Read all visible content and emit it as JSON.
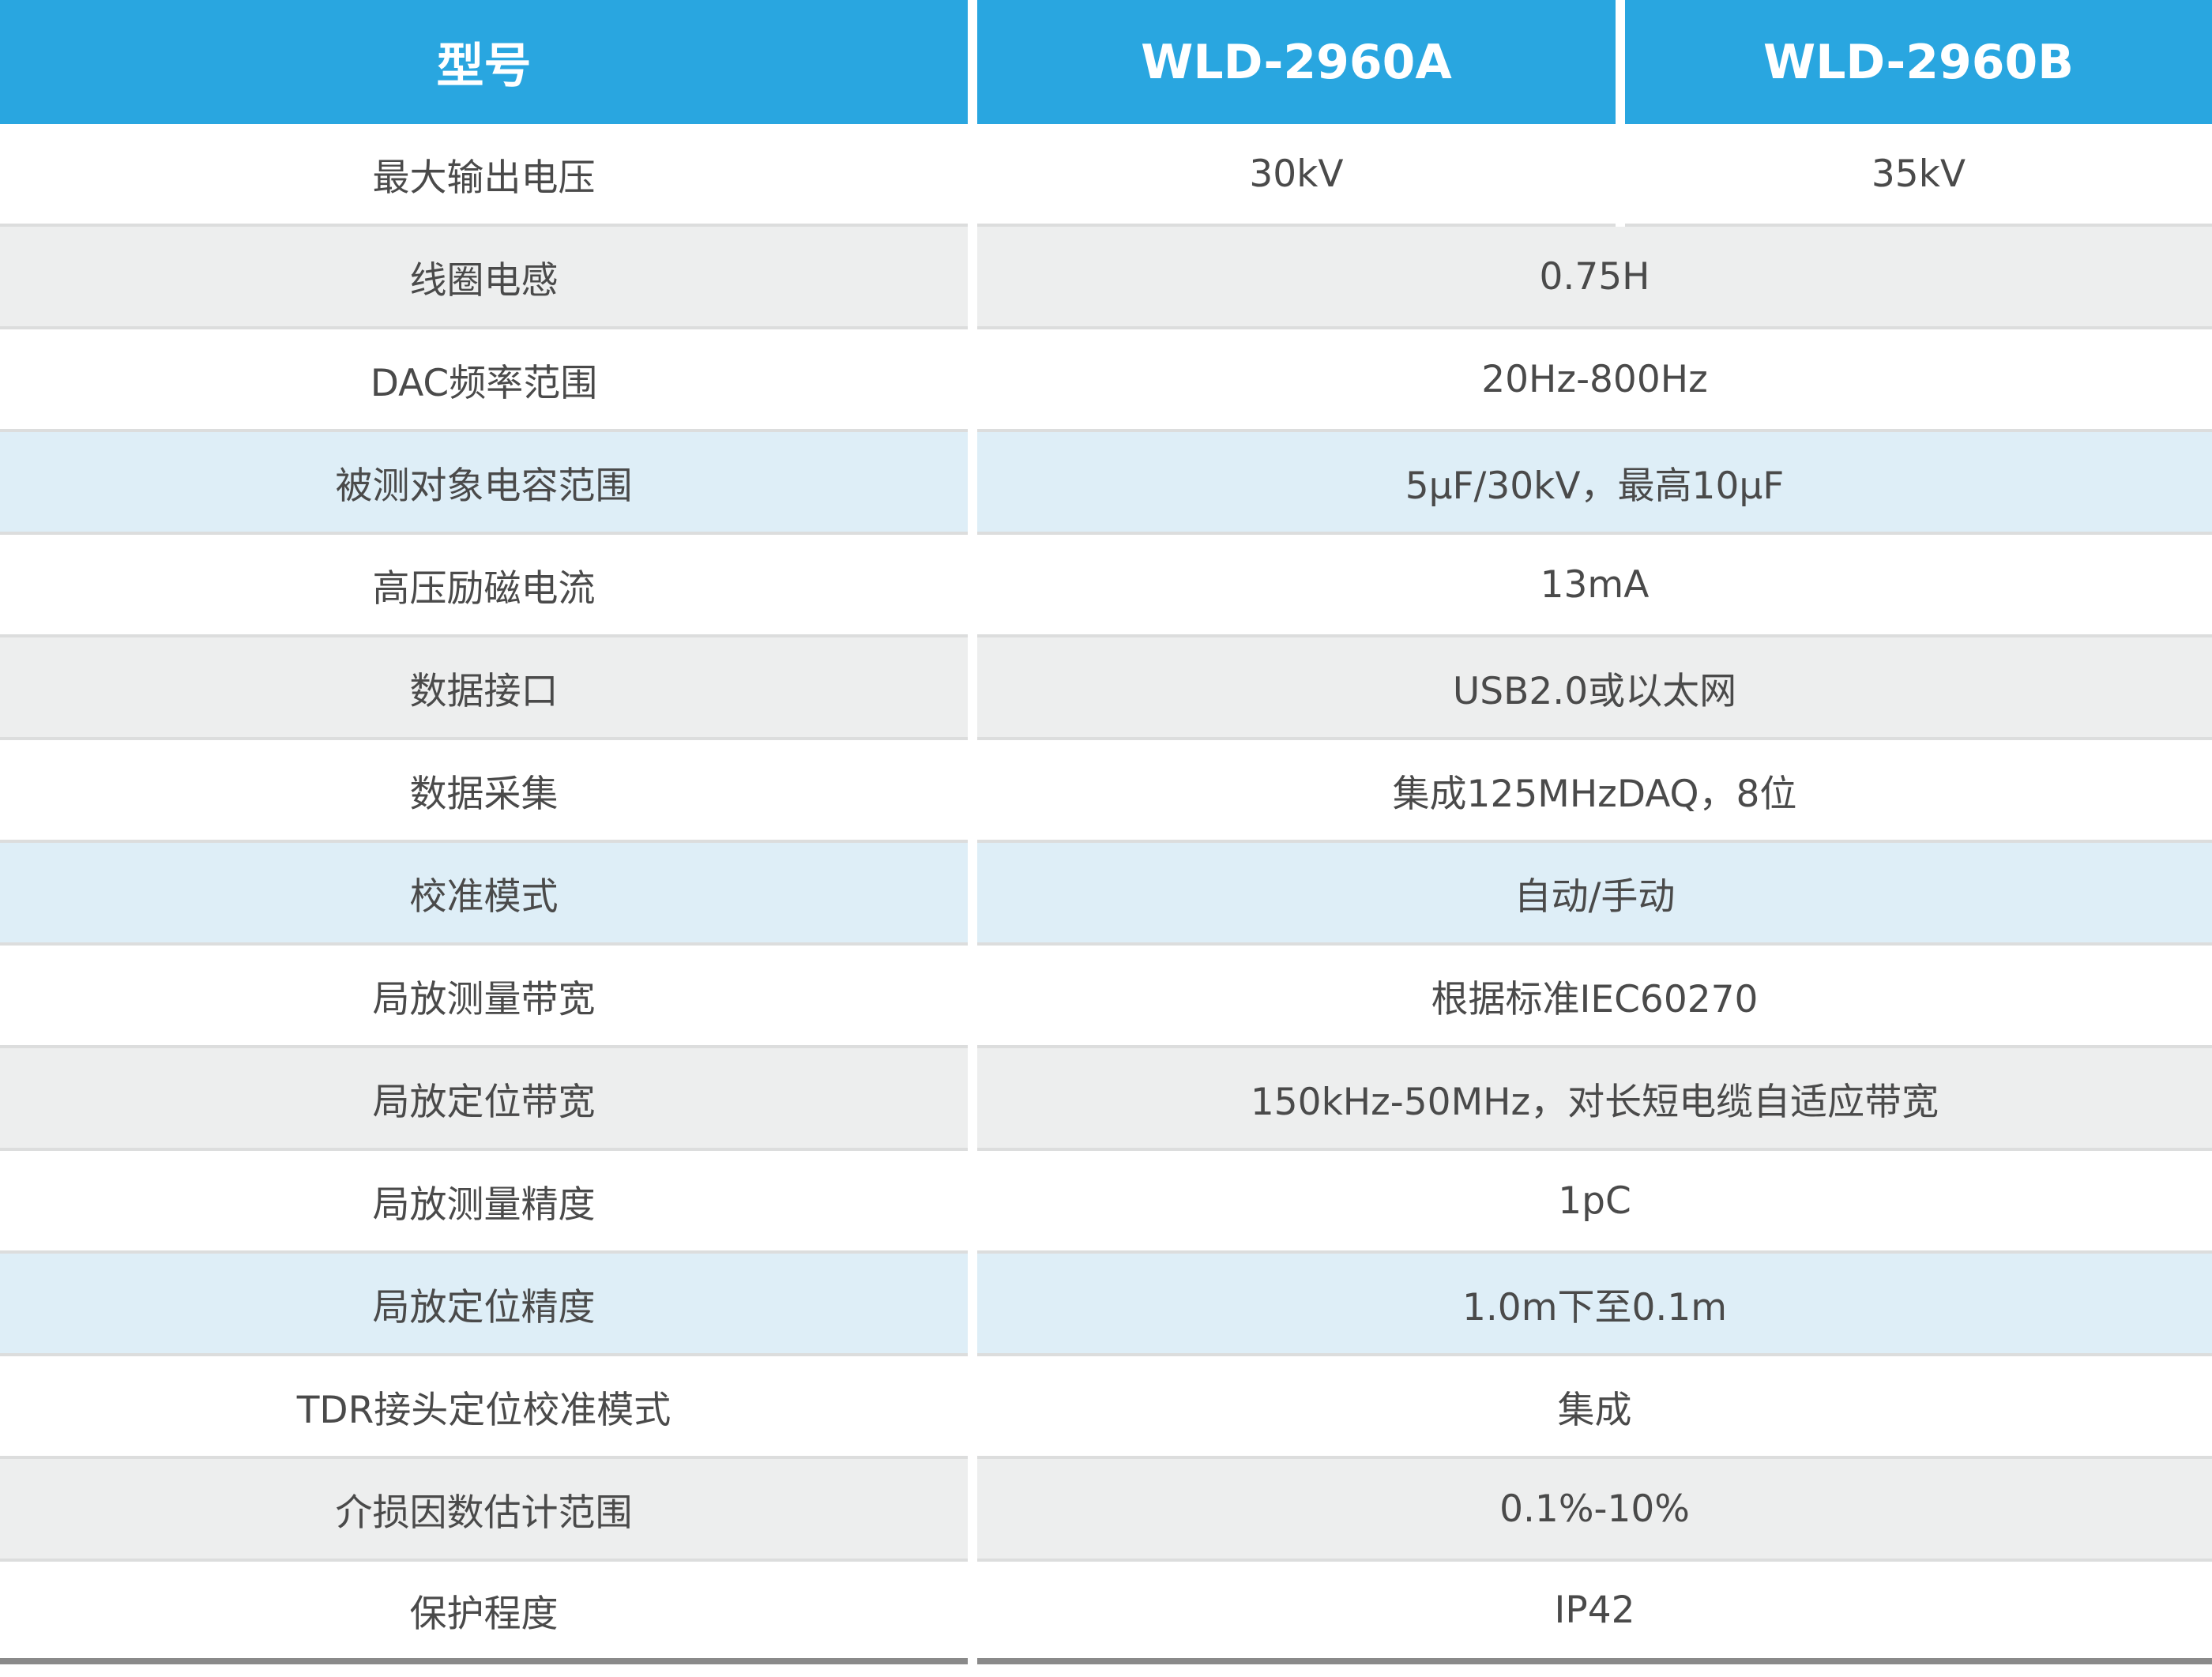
{
  "header": {
    "col1": "型号",
    "col2": "WLD-2960A",
    "col3": "WLD-2960B"
  },
  "colors": {
    "header_bg": "#29a6e0",
    "row_gray": "#edeeee",
    "row_blue": "#deeef7",
    "text": "#4a4a4a"
  },
  "rows": [
    {
      "label": "最大输出电压",
      "value_a": "30kV",
      "value_b": "35kV",
      "style": "white"
    },
    {
      "label": "线圈电感",
      "value": "0.75H",
      "style": "gray"
    },
    {
      "label": "DAC频率范围",
      "value": "20Hz-800Hz",
      "style": "white"
    },
    {
      "label": "被测对象电容范围",
      "value": "5μF/30kV，最高10μF",
      "style": "blue"
    },
    {
      "label": "高压励磁电流",
      "value": "13mA",
      "style": "white"
    },
    {
      "label": "数据接口",
      "value": "USB2.0或以太网",
      "style": "gray"
    },
    {
      "label": "数据采集",
      "value": "集成125MHzDAQ，8位",
      "style": "white"
    },
    {
      "label": "校准模式",
      "value": "自动/手动",
      "style": "blue"
    },
    {
      "label": "局放测量带宽",
      "value": "根据标准IEC60270",
      "style": "white"
    },
    {
      "label": "局放定位带宽",
      "value": "150kHz-50MHz，对长短电缆自适应带宽",
      "style": "gray"
    },
    {
      "label": "局放测量精度",
      "value": "1pC",
      "style": "white"
    },
    {
      "label": "局放定位精度",
      "value": "1.0m下至0.1m",
      "style": "blue"
    },
    {
      "label": "TDR接头定位校准模式",
      "value": "集成",
      "style": "white"
    },
    {
      "label": "介损因数估计范围",
      "value": "0.1%-10%",
      "style": "gray"
    },
    {
      "label": "保护程度",
      "value": "IP42",
      "style": "white"
    }
  ]
}
